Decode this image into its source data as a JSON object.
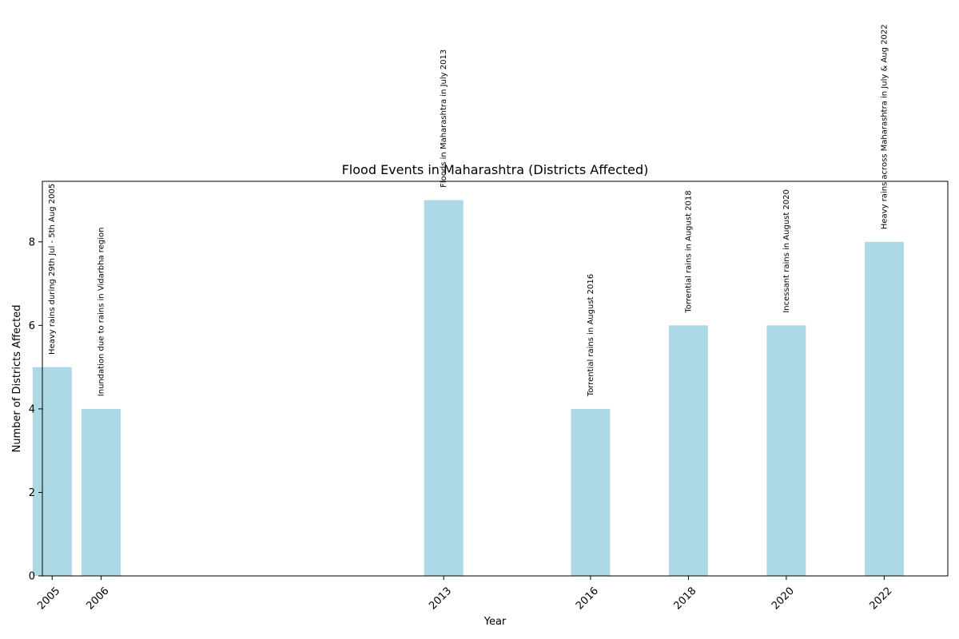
{
  "chart_data": {
    "type": "bar",
    "title": "Flood Events in Maharashtra (Districts Affected)",
    "xlabel": "Year",
    "ylabel": "Number of Districts Affected",
    "x": [
      2005,
      2006,
      2013,
      2016,
      2018,
      2020,
      2022
    ],
    "x_tick_labels": [
      "2005",
      "2006",
      "2013",
      "2016",
      "2018",
      "2020",
      "2022"
    ],
    "values": [
      5,
      4,
      9,
      4,
      6,
      6,
      8
    ],
    "annotations": [
      "Heavy rains during 29th Jul - 5th Aug 2005",
      "Inundation due to rains in Vidarbha region",
      "Floods in Maharashtra in July 2013",
      "Torrential rains in August 2016",
      "Torrential rains in August 2018",
      "Incessant rains in August 2020",
      "Heavy rains across Maharashtra in July & Aug 2022"
    ],
    "y_ticks": [
      0,
      2,
      4,
      6,
      8
    ],
    "ylim": [
      0,
      9.45
    ],
    "xlim": [
      2004.8,
      2023.3
    ],
    "grid": false,
    "bar_color": "#add8e6"
  }
}
